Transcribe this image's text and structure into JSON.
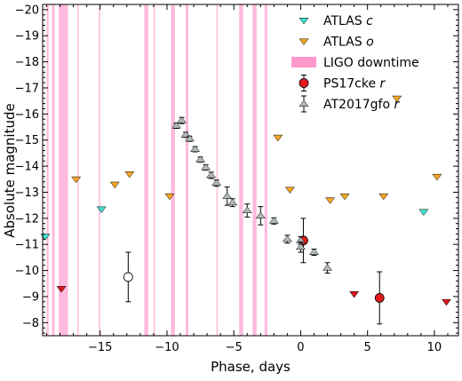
{
  "chart_data": {
    "type": "scatter",
    "xlabel": "Phase, days",
    "ylabel": "Absolute magnitude",
    "xlim": [
      -19.3,
      11.8
    ],
    "ylim": [
      -7.5,
      -20.2
    ],
    "y_inverted": true,
    "xticks": [
      -15,
      -10,
      -5,
      0,
      5,
      10
    ],
    "xtick_labels": [
      "−15",
      "−10",
      "−5",
      "0",
      "5",
      "10"
    ],
    "yticks": [
      -8,
      -9,
      -10,
      -11,
      -12,
      -13,
      -14,
      -15,
      -16,
      -17,
      -18,
      -19,
      -20
    ],
    "ytick_labels": [
      "−8",
      "−9",
      "−10",
      "−11",
      "−12",
      "−13",
      "−14",
      "−15",
      "−16",
      "−17",
      "−18",
      "−19",
      "−20"
    ],
    "grid": false,
    "legend_position": "top-right",
    "downtime_intervals": [
      [
        -19.0,
        -18.85
      ],
      [
        -18.6,
        -18.4
      ],
      [
        -18.1,
        -17.4
      ],
      [
        -16.7,
        -16.6
      ],
      [
        -15.1,
        -15.0
      ],
      [
        -11.7,
        -11.4
      ],
      [
        -11.0,
        -10.9
      ],
      [
        -9.7,
        -9.4
      ],
      [
        -8.6,
        -8.4
      ],
      [
        -6.3,
        -6.2
      ],
      [
        -4.6,
        -4.3
      ],
      [
        -3.6,
        -3.3
      ],
      [
        -2.7,
        -2.5
      ]
    ],
    "series": [
      {
        "name": "ATLAS c",
        "color": "#40e0d0",
        "marker": "triangle-down",
        "points": [
          [
            -19.1,
            -11.3
          ],
          [
            -14.9,
            -12.35
          ],
          [
            9.2,
            -12.25
          ]
        ]
      },
      {
        "name": "ATLAS o",
        "color": "#f5a623",
        "marker": "triangle-down",
        "points": [
          [
            -16.8,
            -13.5
          ],
          [
            -13.9,
            -13.3
          ],
          [
            -12.8,
            -13.7
          ],
          [
            -9.8,
            -12.85
          ],
          [
            -1.7,
            -15.1
          ],
          [
            -0.8,
            -13.1
          ],
          [
            2.2,
            -12.7
          ],
          [
            3.3,
            -12.85
          ],
          [
            6.2,
            -12.85
          ],
          [
            10.2,
            -13.6
          ],
          [
            7.2,
            -16.6
          ]
        ]
      },
      {
        "name": "LIGO downtime",
        "color": "#ff69b4"
      },
      {
        "name": "PS17cke r",
        "color": "#e41a1c",
        "marker": "circle",
        "points": [
          {
            "x": -12.9,
            "y": -9.75,
            "err": 0.95,
            "fill": "#ffffff"
          },
          {
            "x": 0.2,
            "y": -11.15,
            "err": 0.85
          },
          {
            "x": 5.9,
            "y": -8.95,
            "err": 1.0
          }
        ]
      },
      {
        "name": "AT2017gfo r",
        "color": "#b0b8b8",
        "marker": "triangle-up",
        "points": [
          {
            "x": -9.3,
            "y": -15.55,
            "err": 0.1
          },
          {
            "x": -8.9,
            "y": -15.75,
            "err": 0.12
          },
          {
            "x": -8.6,
            "y": -15.2,
            "err": 0.1
          },
          {
            "x": -8.3,
            "y": -15.05,
            "err": 0.1
          },
          {
            "x": -7.9,
            "y": -14.65,
            "err": 0.1
          },
          {
            "x": -7.5,
            "y": -14.25,
            "err": 0.1
          },
          {
            "x": -7.1,
            "y": -13.95,
            "err": 0.1
          },
          {
            "x": -6.7,
            "y": -13.65,
            "err": 0.12
          },
          {
            "x": -6.3,
            "y": -13.35,
            "err": 0.12
          },
          {
            "x": -5.5,
            "y": -12.85,
            "err": 0.35
          },
          {
            "x": -5.1,
            "y": -12.6,
            "err": 0.15
          },
          {
            "x": -4.0,
            "y": -12.3,
            "err": 0.25
          },
          {
            "x": -3.0,
            "y": -12.1,
            "err": 0.35
          },
          {
            "x": -2.0,
            "y": -11.9,
            "err": 0.12
          },
          {
            "x": -1.0,
            "y": -11.2,
            "err": 0.15
          },
          {
            "x": 0.0,
            "y": -11.15,
            "err": 0.15
          },
          {
            "x": 0.0,
            "y": -10.9,
            "err": 0.2
          },
          {
            "x": 1.0,
            "y": -10.7,
            "err": 0.12
          },
          {
            "x": 2.0,
            "y": -10.1,
            "err": 0.2
          }
        ]
      },
      {
        "name": "ATLAS o limits (red)",
        "color": "#d7191c",
        "marker": "triangle-down",
        "points": [
          [
            -17.9,
            -9.3
          ],
          [
            4.0,
            -9.1
          ],
          [
            10.9,
            -8.8
          ]
        ]
      }
    ],
    "legend": [
      {
        "text": "ATLAS",
        "italic": "c",
        "marker": "triangle-down",
        "color": "#40e0d0"
      },
      {
        "text": "ATLAS",
        "italic": "o",
        "marker": "triangle-down",
        "color": "#f5a623"
      },
      {
        "text": "LIGO downtime",
        "italic": "",
        "marker": "band",
        "color": "#ff99cc"
      },
      {
        "text": "PS17cke",
        "italic": "r",
        "marker": "circle-err",
        "color": "#e41a1c"
      },
      {
        "text": "AT2017gfo",
        "italic": "r",
        "marker": "triangle-err",
        "color": "#b0b8b8"
      }
    ]
  }
}
